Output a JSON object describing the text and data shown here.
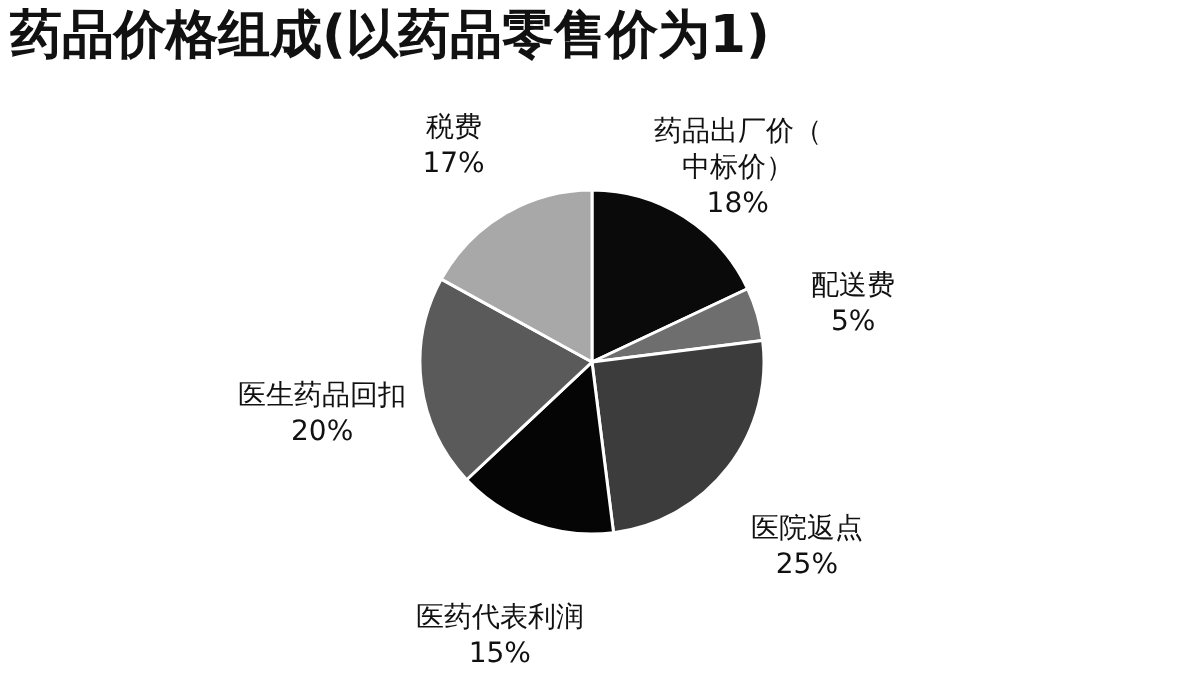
{
  "chart_data": {
    "type": "pie",
    "title": "药品价格组成(以药品零售价为1)",
    "categories": [
      "药品出厂价（中标价）",
      "配送费",
      "医院返点",
      "医药代表利润",
      "医生药品回扣",
      "税费"
    ],
    "values": [
      18,
      5,
      25,
      15,
      20,
      17
    ],
    "value_labels": [
      "18%",
      "5%",
      "25%",
      "15%",
      "20%",
      "17%"
    ],
    "colors": [
      "#0a0a0a",
      "#6e6e6e",
      "#3c3c3c",
      "#050505",
      "#5a5a5a",
      "#a8a8a8"
    ],
    "legend": false
  }
}
